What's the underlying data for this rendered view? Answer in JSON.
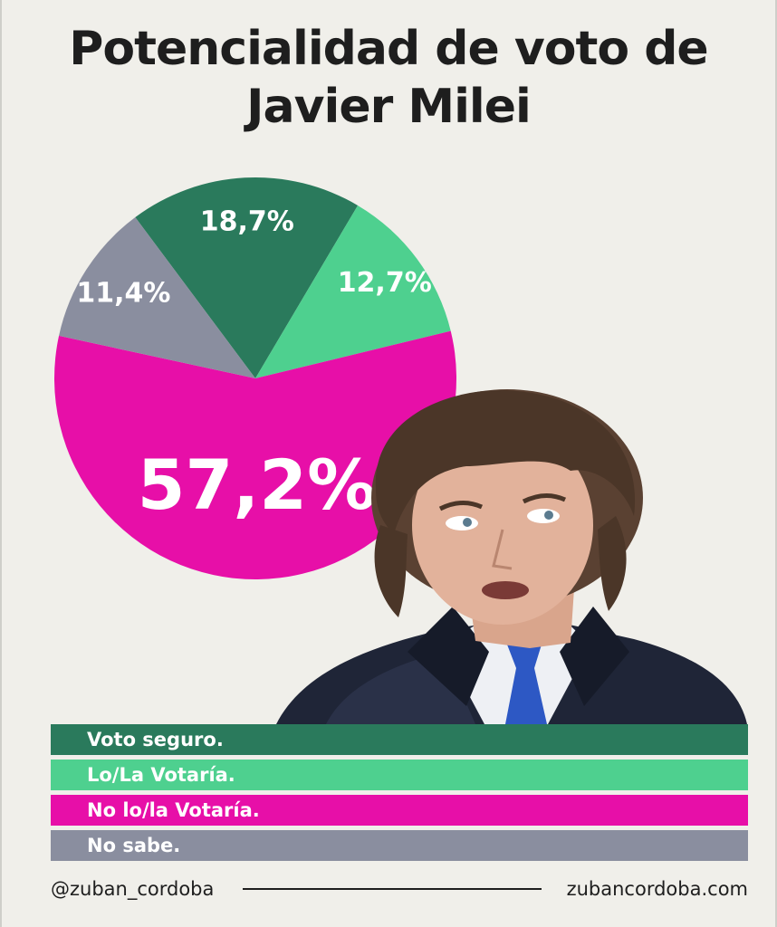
{
  "header": {
    "title_line1": "Potencialidad de voto de",
    "title_line2": "Javier Milei"
  },
  "chart_data": {
    "type": "pie",
    "labels": [
      "Voto seguro.",
      "Lo/La Votaría.",
      "No lo/la Votaría.",
      "No sabe."
    ],
    "values": [
      18.7,
      12.7,
      57.2,
      11.4
    ],
    "value_labels": [
      "18,7%",
      "12,7%",
      "57,2%",
      "11,4%"
    ],
    "colors": [
      "#2a7a5c",
      "#4ed08f",
      "#e70fa8",
      "#8a8e9f"
    ],
    "legend_position": "bottom"
  },
  "photo": {
    "icon": "person-photo"
  },
  "footer": {
    "handle": "@zuban_cordoba",
    "website": "zubancordoba.com"
  }
}
